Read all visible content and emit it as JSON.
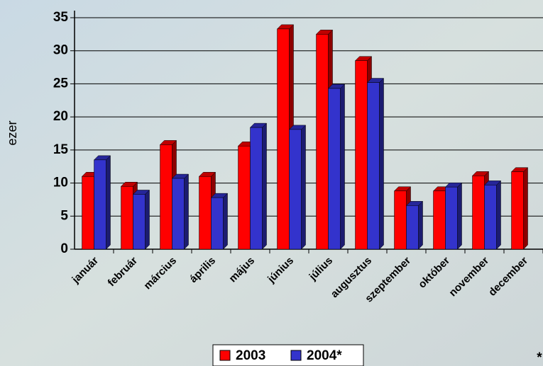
{
  "chart_data": {
    "type": "bar3d",
    "y_label": "ezer",
    "categories": [
      "január",
      "február",
      "március",
      "április",
      "május",
      "június",
      "július",
      "augusztus",
      "szeptember",
      "október",
      "november",
      "december"
    ],
    "series": [
      {
        "name": "2003",
        "color": "#ff0000",
        "values": [
          11,
          9.5,
          15.8,
          11,
          15.6,
          33.3,
          32.5,
          28.5,
          8.8,
          8.8,
          11.1,
          11.7
        ]
      },
      {
        "name": "2004*",
        "color": "#3333cc",
        "values": [
          13.5,
          8.3,
          10.7,
          7.8,
          18.4,
          18.1,
          24.3,
          25.2,
          6.6,
          9.4,
          9.7,
          null
        ]
      }
    ],
    "ylim": [
      0,
      35
    ],
    "yticks": [
      0,
      5,
      10,
      15,
      20,
      25,
      30,
      35
    ],
    "grid": true,
    "legend": "bottom",
    "footnote": "*"
  }
}
